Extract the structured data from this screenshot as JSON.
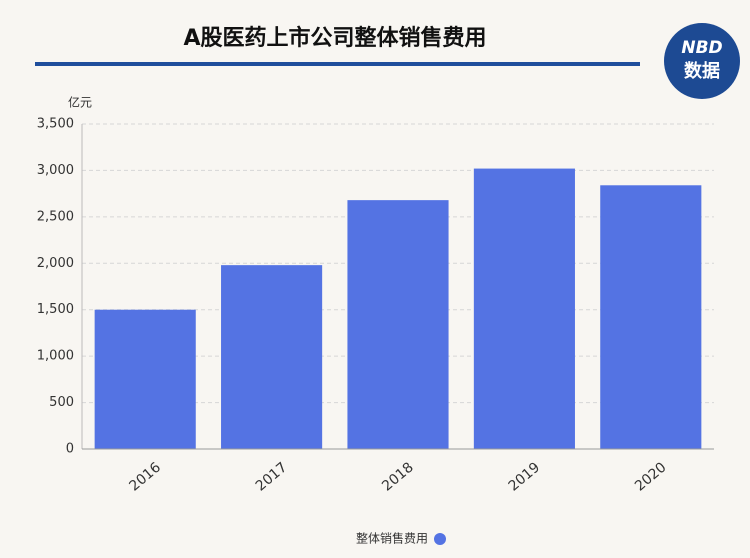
{
  "chart_data": {
    "type": "bar",
    "title": "A股医药上市公司整体销售费用",
    "y_unit": "亿元",
    "logo": [
      "NBD",
      "数据"
    ],
    "categories": [
      "2016",
      "2017",
      "2018",
      "2019",
      "2020"
    ],
    "series": [
      {
        "name": "整体销售费用",
        "color": "#5473e3",
        "values": [
          1500,
          1980,
          2680,
          3020,
          2840
        ]
      }
    ],
    "ylim": [
      0,
      3500
    ],
    "yticks": [
      0,
      500,
      {
        "value": 1000,
        "label": "1,000"
      },
      {
        "value": 1500,
        "label": "1,500"
      },
      {
        "value": 2000,
        "label": "2,000"
      },
      {
        "value": 2500,
        "label": "2,500"
      },
      {
        "value": 3000,
        "label": "3,000"
      },
      {
        "value": 3500,
        "label": "3,500"
      }
    ],
    "grid": true
  }
}
